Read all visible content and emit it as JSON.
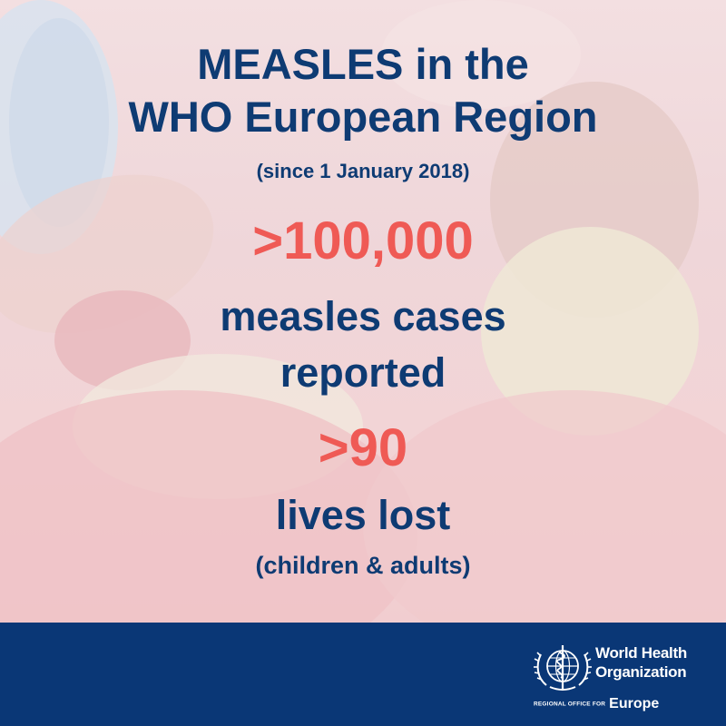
{
  "headline": {
    "line1": "MEASLES in the",
    "line2": "WHO European Region"
  },
  "subtitle": "(since 1 January 2018)",
  "stats": {
    "cases_value": ">100,000",
    "cases_label_line1": "measles cases",
    "cases_label_line2": "reported",
    "deaths_value": ">90",
    "deaths_label": "lives lost",
    "deaths_note": "(children & adults)"
  },
  "footer": {
    "org_line1": "World Health",
    "org_line2": "Organization",
    "regional_office": "REGIONAL OFFICE FOR",
    "region": "Europe",
    "emblem_icon": "who-emblem-icon"
  },
  "colors": {
    "headline": "#0e3b73",
    "stat_accent": "#ef5a55",
    "footer_bg": "#0a3776"
  }
}
